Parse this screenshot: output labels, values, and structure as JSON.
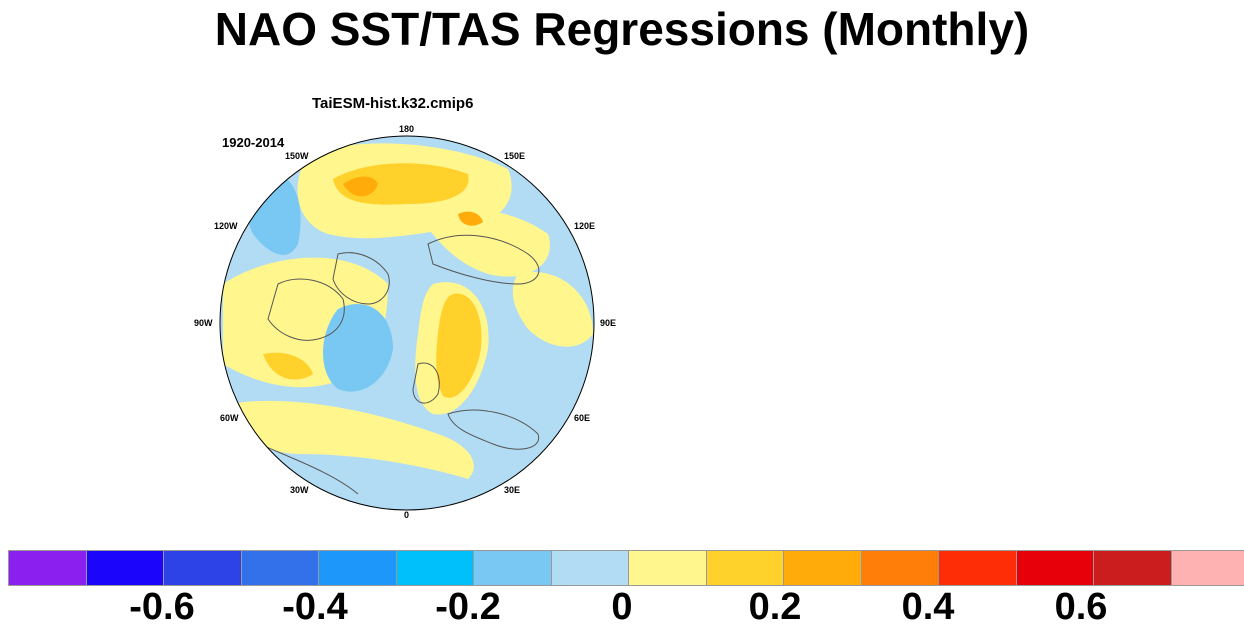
{
  "title": "NAO SST/TAS Regressions (Monthly)",
  "panel": {
    "model": "TaiESM-hist.k32.cmip6",
    "period": "1920-2014",
    "lon_labels": [
      "180",
      "150E",
      "120E",
      "90E",
      "60E",
      "30E",
      "0",
      "30W",
      "60W",
      "90W",
      "120W",
      "150W"
    ]
  },
  "colorbar": {
    "colors": [
      "#8b1ff0",
      "#1c05fb",
      "#2d43e8",
      "#3271e9",
      "#1e97fb",
      "#00c0fb",
      "#79c8f3",
      "#b2dcf3",
      "#fff68e",
      "#ffd12a",
      "#ffac0a",
      "#ff7e0a",
      "#ff2d05",
      "#e70009",
      "#cb1c1e",
      "#ffb2b2"
    ],
    "tick_labels": [
      "-0.6",
      "-0.4",
      "-0.2",
      "0",
      "0.2",
      "0.4",
      "0.6"
    ]
  }
}
